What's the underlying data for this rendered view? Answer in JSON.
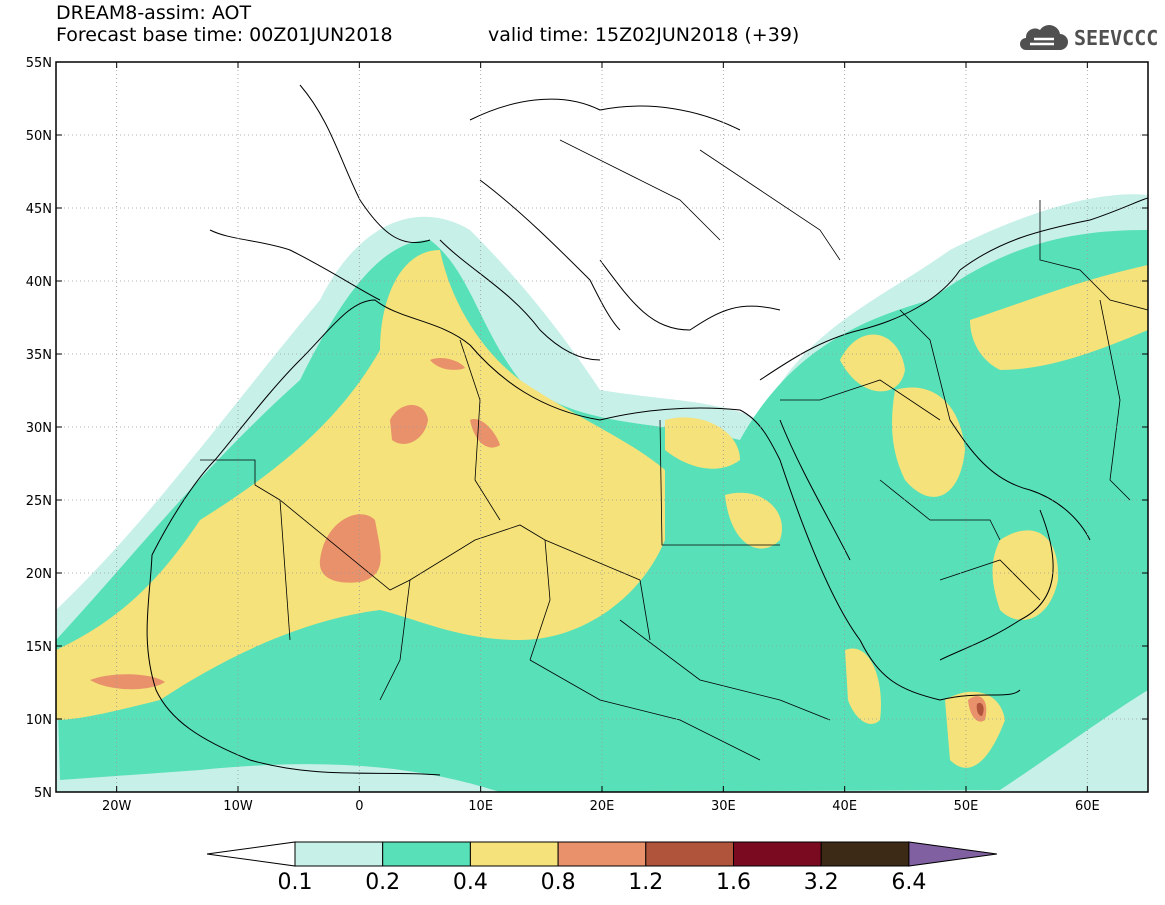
{
  "header": {
    "title": "DREAM8-assim: AOT",
    "base_time": "Forecast base time: 00Z01JUN2018",
    "valid_time": "valid time: 15Z02JUN2018 (+39)"
  },
  "logo": {
    "text": "SEEVCCC",
    "icon": "cloud-icon"
  },
  "map": {
    "lat_labels": [
      "55N",
      "50N",
      "45N",
      "40N",
      "35N",
      "30N",
      "25N",
      "20N",
      "15N",
      "10N",
      "5N"
    ],
    "lon_labels": [
      "20W",
      "10W",
      "0",
      "10E",
      "20E",
      "30E",
      "40E",
      "50E",
      "60E"
    ],
    "lat_range": [
      5,
      55
    ],
    "lon_range": [
      -25,
      65
    ]
  },
  "colorbar": {
    "levels": [
      "0.1",
      "0.2",
      "0.4",
      "0.8",
      "1.2",
      "1.6",
      "3.2",
      "6.4"
    ],
    "colors": [
      "#ffffff",
      "#c7f0e8",
      "#58e0b8",
      "#f5e27a",
      "#e8916a",
      "#b0543c",
      "#7a0a20",
      "#3d2a16",
      "#8060a0"
    ]
  }
}
